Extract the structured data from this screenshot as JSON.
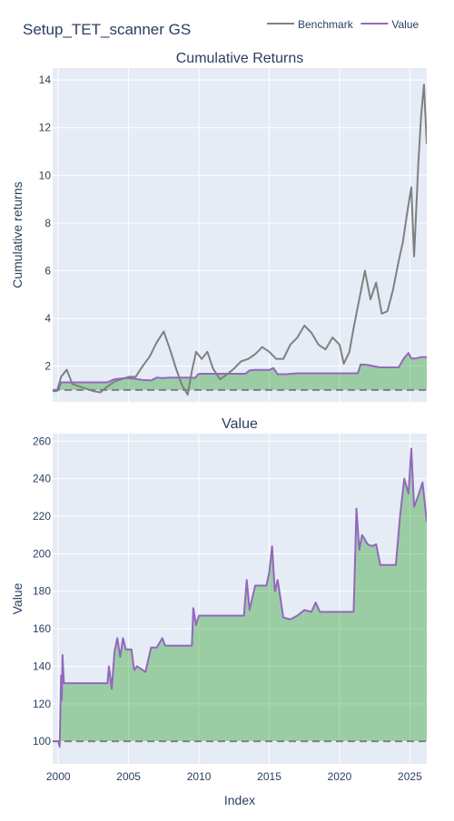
{
  "title": "Setup_TET_scanner GS",
  "legend": {
    "placement": "top-right",
    "items": [
      {
        "label": "Benchmark",
        "color": "#808080"
      },
      {
        "label": "Value",
        "color": "#9467bd"
      }
    ]
  },
  "colors": {
    "plot_bg": "#e5ecf6",
    "grid": "#ffffff",
    "benchmark": "#808080",
    "value": "#9467bd",
    "fill": "#2ca02c",
    "baseline": "#808080",
    "text": "#2a3f5f"
  },
  "chart_data": [
    {
      "type": "line",
      "title": "Cumulative Returns",
      "xlabel": "",
      "ylabel": "Cumulative returns",
      "xlim": [
        1999.6,
        2026.2
      ],
      "ylim": [
        0.5,
        14.5
      ],
      "yticks": [
        2,
        4,
        6,
        8,
        10,
        12,
        14
      ],
      "xticks": [
        2000,
        2005,
        2010,
        2015,
        2020,
        2025
      ],
      "grid": true,
      "baseline": 1,
      "fill_to_baseline": "Value",
      "series": [
        {
          "name": "Benchmark",
          "x": [
            1999.6,
            1999.9,
            2000.2,
            2000.6,
            2001.0,
            2001.5,
            2002.0,
            2002.5,
            2003.0,
            2003.5,
            2004.0,
            2004.5,
            2005.0,
            2005.5,
            2006.0,
            2006.5,
            2007.0,
            2007.5,
            2008.0,
            2008.4,
            2008.8,
            2009.2,
            2009.5,
            2009.8,
            2010.2,
            2010.6,
            2011.0,
            2011.5,
            2012.0,
            2012.5,
            2013.0,
            2013.5,
            2014.0,
            2014.5,
            2015.0,
            2015.5,
            2016.0,
            2016.5,
            2017.0,
            2017.5,
            2018.0,
            2018.5,
            2019.0,
            2019.5,
            2020.0,
            2020.3,
            2020.7,
            2021.0,
            2021.4,
            2021.8,
            2022.2,
            2022.6,
            2023.0,
            2023.4,
            2023.8,
            2024.2,
            2024.5,
            2024.8,
            2025.1,
            2025.3,
            2025.6,
            2025.8,
            2026.0,
            2026.2
          ],
          "values": [
            0.95,
            0.95,
            1.55,
            1.85,
            1.25,
            1.15,
            1.05,
            0.95,
            0.9,
            1.15,
            1.35,
            1.45,
            1.55,
            1.55,
            2.0,
            2.4,
            3.0,
            3.45,
            2.6,
            1.85,
            1.2,
            0.8,
            1.8,
            2.6,
            2.3,
            2.6,
            1.9,
            1.45,
            1.65,
            1.9,
            2.2,
            2.3,
            2.5,
            2.8,
            2.6,
            2.3,
            2.3,
            2.9,
            3.2,
            3.7,
            3.4,
            2.9,
            2.7,
            3.2,
            2.9,
            2.1,
            2.6,
            3.6,
            4.8,
            6.0,
            4.8,
            5.5,
            4.2,
            4.3,
            5.2,
            6.4,
            7.2,
            8.4,
            9.5,
            6.6,
            10.5,
            12.5,
            13.8,
            11.3
          ]
        },
        {
          "name": "Value",
          "x": [
            1999.6,
            2000.0,
            2000.2,
            2000.8,
            2002.0,
            2003.5,
            2004.0,
            2004.8,
            2005.3,
            2006.0,
            2006.6,
            2007.0,
            2007.4,
            2008.0,
            2009.0,
            2009.5,
            2009.7,
            2010.0,
            2012.0,
            2013.3,
            2013.6,
            2014.0,
            2015.0,
            2015.3,
            2015.6,
            2016.2,
            2017.0,
            2018.0,
            2020.0,
            2021.3,
            2021.5,
            2022.0,
            2022.8,
            2023.5,
            2024.2,
            2024.6,
            2024.9,
            2025.1,
            2025.4,
            2025.8,
            2026.2
          ],
          "values": [
            1.0,
            1.0,
            1.32,
            1.32,
            1.32,
            1.32,
            1.45,
            1.5,
            1.48,
            1.42,
            1.4,
            1.52,
            1.5,
            1.52,
            1.52,
            1.52,
            1.5,
            1.68,
            1.68,
            1.68,
            1.82,
            1.84,
            1.84,
            1.92,
            1.66,
            1.66,
            1.7,
            1.7,
            1.7,
            1.7,
            2.07,
            2.05,
            1.95,
            1.95,
            1.95,
            2.35,
            2.55,
            2.32,
            2.32,
            2.38,
            2.38
          ]
        }
      ]
    },
    {
      "type": "line",
      "title": "Value",
      "xlabel": "Index",
      "ylabel": "Value",
      "xlim": [
        1999.6,
        2026.2
      ],
      "ylim": [
        88,
        264
      ],
      "yticks": [
        100,
        120,
        140,
        160,
        180,
        200,
        220,
        240,
        260
      ],
      "xticks": [
        2000,
        2005,
        2010,
        2015,
        2020,
        2025
      ],
      "grid": true,
      "baseline": 100,
      "fill_to_baseline": "Value",
      "series": [
        {
          "name": "Value",
          "x": [
            1999.6,
            2000.0,
            2000.1,
            2000.2,
            2000.25,
            2000.3,
            2000.4,
            2000.5,
            2003.5,
            2003.6,
            2003.8,
            2004.0,
            2004.2,
            2004.4,
            2004.6,
            2004.8,
            2005.0,
            2005.2,
            2005.4,
            2005.6,
            2006.0,
            2006.2,
            2006.6,
            2007.0,
            2007.4,
            2007.6,
            2009.5,
            2009.6,
            2009.8,
            2010.0,
            2013.0,
            2013.2,
            2013.4,
            2013.6,
            2014.0,
            2014.8,
            2015.0,
            2015.2,
            2015.4,
            2015.6,
            2016.0,
            2016.5,
            2017.0,
            2017.5,
            2018.0,
            2018.3,
            2018.6,
            2020.0,
            2021.0,
            2021.2,
            2021.4,
            2021.6,
            2022.0,
            2022.3,
            2022.6,
            2022.9,
            2023.6,
            2024.0,
            2024.3,
            2024.6,
            2024.9,
            2025.1,
            2025.3,
            2025.6,
            2025.9,
            2026.2
          ],
          "values": [
            100,
            100,
            97,
            135,
            122,
            146,
            131,
            131,
            131,
            140,
            128,
            148,
            155,
            145,
            155,
            149,
            149,
            149,
            138,
            140,
            138,
            137,
            150,
            150,
            155,
            151,
            151,
            171,
            162,
            167,
            167,
            167,
            186,
            170,
            183,
            183,
            190,
            204,
            180,
            186,
            166,
            165,
            167,
            170,
            169,
            174,
            169,
            169,
            169,
            224,
            202,
            210,
            205,
            204,
            205,
            194,
            194,
            194,
            220,
            240,
            232,
            256,
            225,
            231,
            238,
            217
          ]
        }
      ]
    }
  ]
}
